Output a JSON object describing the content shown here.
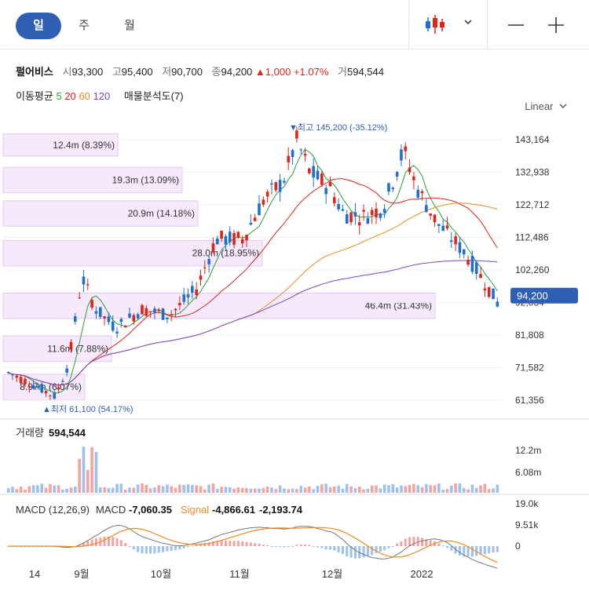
{
  "toolbar": {
    "tabs": [
      {
        "label": "일",
        "active": true
      },
      {
        "label": "주",
        "active": false
      },
      {
        "label": "월",
        "active": false
      }
    ],
    "icons": [
      "candlestick-icon",
      "chevron-down-icon",
      "minus-icon",
      "plus-icon"
    ]
  },
  "quote": {
    "name": "펄어비스",
    "open_label": "시",
    "open": "93,300",
    "high_label": "고",
    "high": "95,400",
    "low_label": "저",
    "low": "90,700",
    "close_label": "종",
    "close": "94,200",
    "change": "▲1,000",
    "change_pct": "+1.07%",
    "volume_label": "거",
    "volume": "594,544"
  },
  "ma_legend": {
    "label": "이동평균",
    "periods": [
      "5",
      "20",
      "60",
      "120"
    ],
    "colors": [
      "#2e9e3a",
      "#e0241a",
      "#f08a24",
      "#7b45c9"
    ],
    "vp_label": "매물분석도(7)"
  },
  "scale_label": "Linear",
  "colors": {
    "up": "#e0241a",
    "down": "#1f6fd1",
    "vp_fill": "#f5e9fb",
    "vp_border": "#e3c9f3",
    "price_tag": "#2f5fb3"
  },
  "chart_data": {
    "type": "candlestick",
    "y_ticks": [
      "143,164",
      "132,938",
      "122,712",
      "112,486",
      "102,260",
      "92,034",
      "81,808",
      "71,582",
      "61,356"
    ],
    "ylim": [
      61356,
      143164
    ],
    "x_labels": [
      "14",
      "9월",
      "10월",
      "11월",
      "12월",
      "2022"
    ],
    "last_price_label": "94,200",
    "max_annotation": "▼최고 145,200 (-35.12%)",
    "min_annotation": "▲최저 61,100 (54.17%)",
    "volume_profile": [
      {
        "label": "12.4m (8.39%)",
        "low": 138000,
        "high": 145000
      },
      {
        "label": "19.3m (13.09%)",
        "low": 126500,
        "high": 134500
      },
      {
        "label": "20.9m (14.18%)",
        "low": 116000,
        "high": 124000
      },
      {
        "label": "28.0m (18.95%)",
        "low": 103500,
        "high": 111500
      },
      {
        "label": "46.4m (31.43%)",
        "low": 87000,
        "high": 95000
      },
      {
        "label": "11.6m (7.88%)",
        "low": 73500,
        "high": 81500
      },
      {
        "label": "8.97m (6.07%)",
        "low": 61500,
        "high": 69500
      }
    ],
    "volume": {
      "label": "거래량",
      "value": "594,544",
      "ticks": [
        "12.2m",
        "6.08m"
      ]
    },
    "macd": {
      "label": "MACD (12,26,9)",
      "macd_label": "MACD",
      "macd_value": "-7,060.35",
      "signal_label": "Signal",
      "signal_value": "-4,866.61",
      "hist_value": "-2,193.74",
      "ticks": [
        "19.0k",
        "9.51k",
        "0"
      ]
    }
  }
}
